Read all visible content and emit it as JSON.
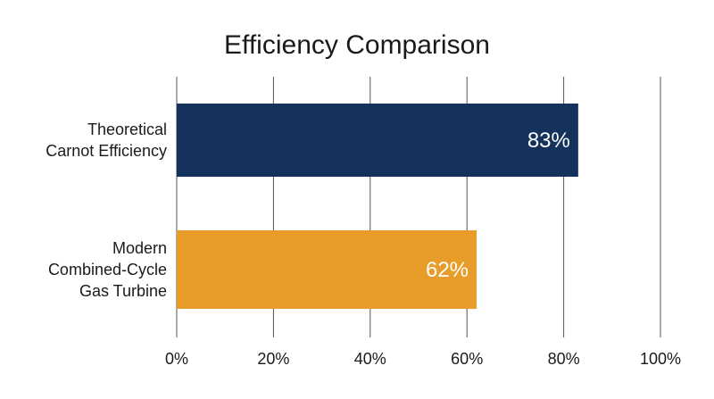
{
  "chart_data": {
    "type": "bar",
    "orientation": "horizontal",
    "title": "Efficiency Comparison",
    "xlabel": "",
    "ylabel": "",
    "categories": [
      [
        "Theoretical",
        "Carnot Efficiency"
      ],
      [
        "Modern",
        "Combined-Cycle",
        "Gas Turbine"
      ]
    ],
    "values": [
      83,
      62
    ],
    "value_labels": [
      "83%",
      "62%"
    ],
    "colors": [
      "#14325c",
      "#e89c2a"
    ],
    "xlim": [
      0,
      100
    ],
    "xticks": [
      0,
      20,
      40,
      60,
      80,
      100
    ],
    "xtick_labels": [
      "0%",
      "20%",
      "40%",
      "60%",
      "80%",
      "100%"
    ],
    "grid": "vertical",
    "legend": "none"
  }
}
